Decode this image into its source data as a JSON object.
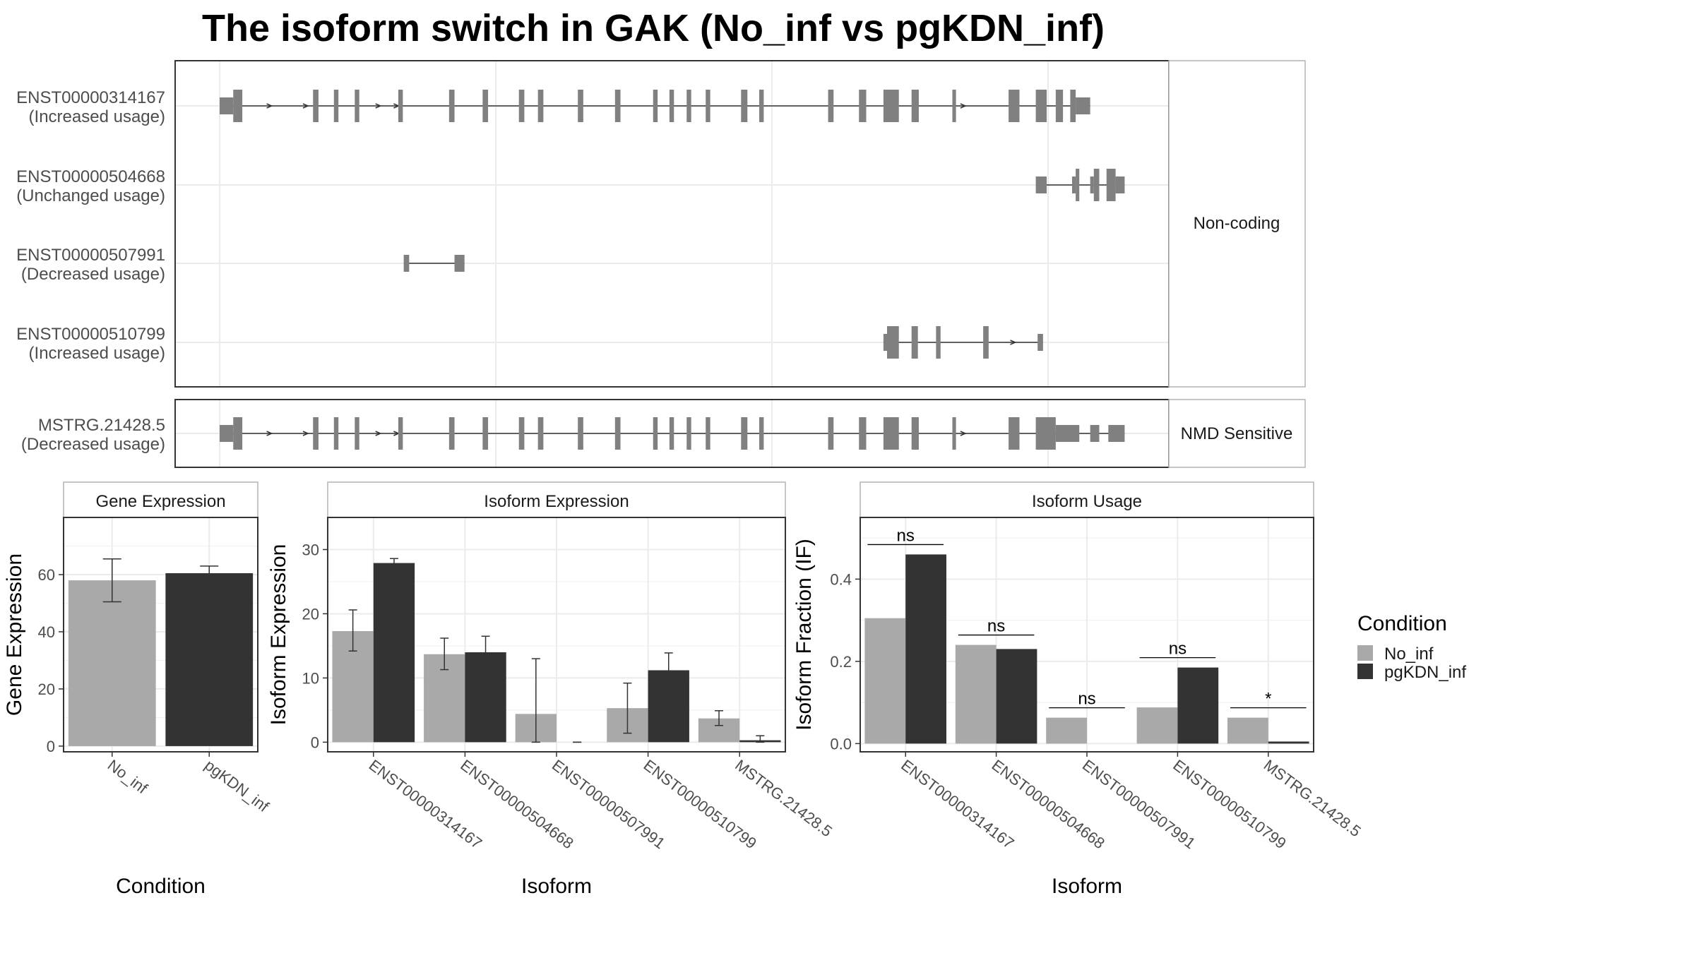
{
  "title": "The isoform switch in GAK (No_inf vs pgKDN_inf)",
  "colors": {
    "No_inf": "#a9a9a9",
    "pgKDN_inf": "#333333",
    "exon": "#808080",
    "grid": "#ebebeb",
    "panel_border": "#333333",
    "strip_border": "#b3b3b3"
  },
  "structure": {
    "groups": [
      {
        "label": "Non-coding",
        "transcripts": [
          {
            "id": "ENST00000314167",
            "status": "(Increased usage)",
            "exons": [
              [
                0,
                0.015,
                "utr"
              ],
              [
                0.015,
                0.025,
                "cds"
              ],
              [
                0.103,
                0.109,
                "cds"
              ],
              [
                0.126,
                0.131,
                "cds"
              ],
              [
                0.149,
                0.154,
                "cds"
              ],
              [
                0.197,
                0.202,
                "cds"
              ],
              [
                0.253,
                0.259,
                "cds"
              ],
              [
                0.29,
                0.296,
                "cds"
              ],
              [
                0.33,
                0.336,
                "cds"
              ],
              [
                0.351,
                0.357,
                "cds"
              ],
              [
                0.395,
                0.401,
                "cds"
              ],
              [
                0.436,
                0.442,
                "cds"
              ],
              [
                0.478,
                0.483,
                "cds"
              ],
              [
                0.496,
                0.501,
                "cds"
              ],
              [
                0.515,
                0.52,
                "cds"
              ],
              [
                0.536,
                0.541,
                "cds"
              ],
              [
                0.575,
                0.582,
                "cds"
              ],
              [
                0.595,
                0.6,
                "cds"
              ],
              [
                0.671,
                0.677,
                "cds"
              ],
              [
                0.705,
                0.713,
                "cds"
              ],
              [
                0.732,
                0.749,
                "cds"
              ],
              [
                0.763,
                0.771,
                "cds"
              ],
              [
                0.808,
                0.812,
                "cds"
              ],
              [
                0.87,
                0.882,
                "cds"
              ],
              [
                0.9,
                0.912,
                "cds"
              ],
              [
                0.922,
                0.93,
                "cds"
              ],
              [
                0.938,
                0.944,
                "cds"
              ],
              [
                0.944,
                0.96,
                "utr"
              ]
            ],
            "arrows": [
              0.055,
              0.095,
              0.175,
              0.195,
              0.82
            ]
          },
          {
            "id": "ENST00000504668",
            "status": "(Unchanged usage)",
            "exons": [
              [
                0.9,
                0.912,
                "utr"
              ],
              [
                0.94,
                0.944,
                "utr"
              ],
              [
                0.944,
                0.948,
                "cds"
              ],
              [
                0.96,
                0.964,
                "utr"
              ],
              [
                0.964,
                0.97,
                "cds"
              ],
              [
                0.978,
                0.988,
                "cds"
              ],
              [
                0.988,
                0.998,
                "utr"
              ]
            ],
            "arrows": []
          },
          {
            "id": "ENST00000507991",
            "status": "(Decreased usage)",
            "exons": [
              [
                0.203,
                0.209,
                "utr"
              ],
              [
                0.259,
                0.27,
                "utr"
              ]
            ],
            "arrows": []
          },
          {
            "id": "ENST00000510799",
            "status": "(Increased usage)",
            "exons": [
              [
                0.732,
                0.736,
                "utr"
              ],
              [
                0.736,
                0.749,
                "cds"
              ],
              [
                0.763,
                0.77,
                "cds"
              ],
              [
                0.79,
                0.795,
                "cds"
              ],
              [
                0.842,
                0.848,
                "cds"
              ],
              [
                0.902,
                0.908,
                "utr"
              ]
            ],
            "arrows": [
              0.875
            ]
          }
        ]
      },
      {
        "label": "NMD Sensitive",
        "transcripts": [
          {
            "id": "MSTRG.21428.5",
            "status": "(Decreased usage)",
            "exons": [
              [
                0,
                0.015,
                "utr"
              ],
              [
                0.015,
                0.025,
                "cds"
              ],
              [
                0.103,
                0.109,
                "cds"
              ],
              [
                0.126,
                0.131,
                "cds"
              ],
              [
                0.149,
                0.154,
                "cds"
              ],
              [
                0.197,
                0.202,
                "cds"
              ],
              [
                0.253,
                0.259,
                "cds"
              ],
              [
                0.29,
                0.296,
                "cds"
              ],
              [
                0.33,
                0.336,
                "cds"
              ],
              [
                0.351,
                0.357,
                "cds"
              ],
              [
                0.395,
                0.401,
                "cds"
              ],
              [
                0.436,
                0.442,
                "cds"
              ],
              [
                0.478,
                0.483,
                "cds"
              ],
              [
                0.496,
                0.501,
                "cds"
              ],
              [
                0.515,
                0.52,
                "cds"
              ],
              [
                0.536,
                0.541,
                "cds"
              ],
              [
                0.575,
                0.582,
                "cds"
              ],
              [
                0.595,
                0.6,
                "cds"
              ],
              [
                0.671,
                0.677,
                "cds"
              ],
              [
                0.705,
                0.713,
                "cds"
              ],
              [
                0.732,
                0.749,
                "cds"
              ],
              [
                0.763,
                0.771,
                "cds"
              ],
              [
                0.808,
                0.812,
                "cds"
              ],
              [
                0.87,
                0.882,
                "cds"
              ],
              [
                0.9,
                0.922,
                "cds"
              ],
              [
                0.922,
                0.948,
                "utr"
              ],
              [
                0.96,
                0.97,
                "utr"
              ],
              [
                0.98,
                0.998,
                "utr"
              ]
            ],
            "arrows": [
              0.055,
              0.095,
              0.175,
              0.195,
              0.82
            ]
          }
        ]
      }
    ]
  },
  "chart_data": [
    {
      "type": "bar",
      "title": "Gene Expression",
      "xlabel": "Condition",
      "ylabel": "Gene Expression",
      "categories": [
        "No_inf",
        "pgKDN_inf"
      ],
      "values": [
        58,
        60.5
      ],
      "errors": [
        [
          50.5,
          65.5
        ],
        [
          58,
          63
        ]
      ],
      "yticks": [
        0,
        20,
        40,
        60
      ],
      "ylim": [
        -2,
        80
      ]
    },
    {
      "type": "bar",
      "title": "Isoform Expression",
      "xlabel": "Isoform",
      "ylabel": "Isoform Expression",
      "categories": [
        "ENST00000314167",
        "ENST00000504668",
        "ENST00000507991",
        "ENST00000510799",
        "MSTRG.21428.5"
      ],
      "series": [
        {
          "name": "No_inf",
          "values": [
            17.3,
            13.7,
            4.4,
            5.3,
            3.7
          ],
          "errors": [
            [
              14.2,
              20.6
            ],
            [
              11.3,
              16.2
            ],
            [
              0,
              13
            ],
            [
              1.4,
              9.2
            ],
            [
              2.6,
              4.9
            ]
          ]
        },
        {
          "name": "pgKDN_inf",
          "values": [
            27.9,
            14,
            0,
            11.2,
            0.3
          ],
          "errors": [
            [
              27.2,
              28.6
            ],
            [
              11.8,
              16.5
            ],
            [
              0,
              0
            ],
            [
              8.8,
              13.9
            ],
            [
              0,
              1
            ]
          ]
        }
      ],
      "yticks": [
        0,
        10,
        20,
        30
      ],
      "ylim": [
        -1.5,
        35
      ]
    },
    {
      "type": "bar",
      "title": "Isoform Usage",
      "xlabel": "Isoform",
      "ylabel": "Isoform Fraction (IF)",
      "categories": [
        "ENST00000314167",
        "ENST00000504668",
        "ENST00000507991",
        "ENST00000510799",
        "MSTRG.21428.5"
      ],
      "series": [
        {
          "name": "No_inf",
          "values": [
            0.305,
            0.24,
            0.063,
            0.088,
            0.063
          ]
        },
        {
          "name": "pgKDN_inf",
          "values": [
            0.46,
            0.23,
            0,
            0.185,
            0.005
          ]
        }
      ],
      "significance": [
        "ns",
        "ns",
        "ns",
        "ns",
        "*"
      ],
      "yticks": [
        0,
        0.2,
        0.4
      ],
      "yticklabels": [
        "0.0",
        "0.2",
        "0.4"
      ],
      "ylim": [
        -0.02,
        0.55
      ]
    }
  ],
  "legend": {
    "title": "Condition",
    "items": [
      {
        "label": "No_inf",
        "color": "#a9a9a9"
      },
      {
        "label": "pgKDN_inf",
        "color": "#333333"
      }
    ]
  }
}
